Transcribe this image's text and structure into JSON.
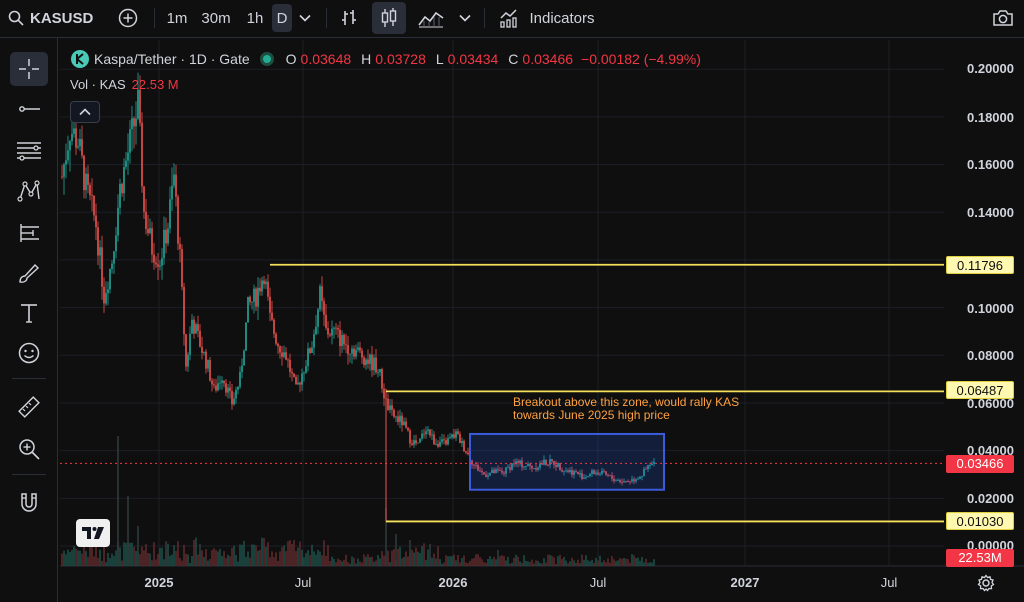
{
  "toolbar": {
    "symbol": "KASUSD",
    "intervals": [
      "1m",
      "30m",
      "1h",
      "D"
    ],
    "active_interval": "D",
    "indicators_label": "Indicators"
  },
  "left_tools": [
    "crosshair",
    "trend-line",
    "fib-retracement",
    "pattern",
    "measure",
    "brush",
    "text",
    "emoji",
    "ruler",
    "zoom-in",
    "magnet"
  ],
  "legend": {
    "title": "Kaspa/Tether · 1D · Gate",
    "o_label": "O",
    "o": "0.03648",
    "h_label": "H",
    "h": "0.03728",
    "l_label": "L",
    "l": "0.03434",
    "c_label": "C",
    "c": "0.03466",
    "change": "−0.00182 (−4.99%)",
    "vol_label": "Vol · KAS",
    "vol_value": "22.53 M"
  },
  "price_axis": [
    "0.20000",
    "0.18000",
    "0.16000",
    "0.14000",
    "0.12000",
    "0.10000",
    "0.08000",
    "0.06000",
    "0.04000",
    "0.02000",
    "0.00000"
  ],
  "tags": {
    "level_high": "0.11796",
    "level_mid": "0.06487",
    "last_price": "0.03466",
    "level_low": "0.01030",
    "volume": "22.53M"
  },
  "time_axis": [
    {
      "label": "2025",
      "bold": true
    },
    {
      "label": "Jul",
      "bold": false
    },
    {
      "label": "2026",
      "bold": true
    },
    {
      "label": "Jul",
      "bold": false
    },
    {
      "label": "2027",
      "bold": true
    },
    {
      "label": "Jul",
      "bold": false
    }
  ],
  "annotation": {
    "line1": "Breakout above this zone, would rally KAS",
    "line2": "towards June 2025 high price"
  },
  "colors": {
    "up": "#26a69a",
    "down": "#ef5350",
    "level": "#f5e05a",
    "zone": "#3b5bdb",
    "accent": "#2962ff"
  }
}
